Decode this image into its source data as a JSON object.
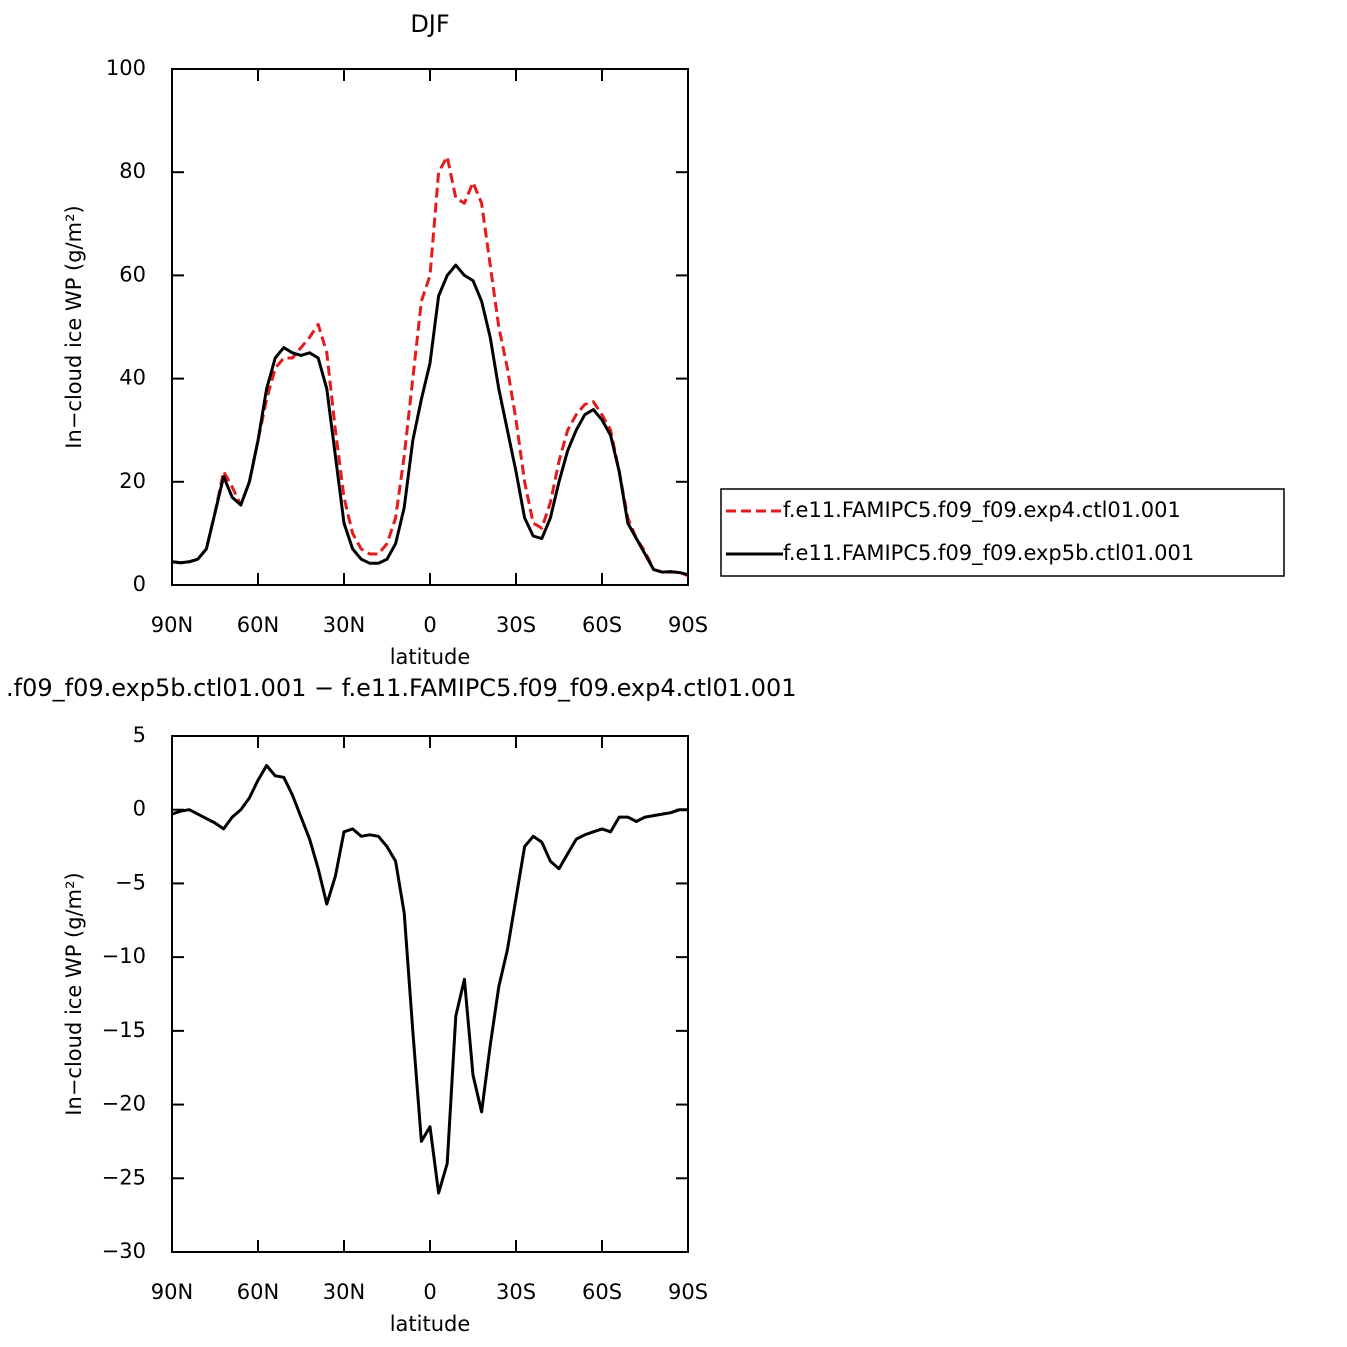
{
  "chart_data": [
    {
      "type": "line",
      "title": "DJF",
      "xlabel": "latitude",
      "ylabel": "In−cloud ice WP (g/m²)",
      "x": [
        90,
        87,
        84,
        81,
        78,
        75,
        72,
        69,
        66,
        63,
        60,
        57,
        54,
        51,
        48,
        45,
        42,
        39,
        36,
        33,
        30,
        27,
        24,
        21,
        18,
        15,
        12,
        9,
        6,
        3,
        0,
        -3,
        -6,
        -9,
        -12,
        -15,
        -18,
        -21,
        -24,
        -27,
        -30,
        -33,
        -36,
        -39,
        -42,
        -45,
        -48,
        -51,
        -54,
        -57,
        -60,
        -63,
        -66,
        -69,
        -72,
        -75,
        -78,
        -81,
        -84,
        -87,
        -90
      ],
      "xlim": [
        90,
        -90
      ],
      "xticks": [
        {
          "value": 90,
          "label": "90N"
        },
        {
          "value": 60,
          "label": "60N"
        },
        {
          "value": 30,
          "label": "30N"
        },
        0,
        {
          "value": -30,
          "label": "30S"
        },
        {
          "value": -60,
          "label": "60S"
        },
        {
          "value": -90,
          "label": "90S"
        }
      ],
      "ylim": [
        0,
        100
      ],
      "yticks": [
        0,
        20,
        40,
        60,
        80,
        100
      ],
      "legend": "outside right",
      "series": [
        {
          "name": "f.e11.FAMIPC5.f09_f09.exp4.ctl01.001",
          "color": "#e41a1c",
          "line_style": "dashed",
          "values": [
            4.5,
            4.3,
            4.5,
            5,
            7,
            14,
            22,
            19,
            15.5,
            20,
            28,
            36,
            42,
            44,
            44,
            46,
            48,
            50.5,
            45,
            30,
            17,
            10,
            7,
            6,
            6,
            8,
            13,
            25,
            40,
            55,
            60,
            80,
            83,
            75,
            74,
            78,
            74,
            62,
            50,
            42,
            32,
            20,
            12,
            11,
            16,
            24,
            30,
            33,
            35,
            35.5,
            33,
            30,
            22,
            13,
            9,
            6.5,
            3,
            2.5,
            2.5,
            2.5,
            1.8
          ]
        },
        {
          "name": "f.e11.FAMIPC5.f09_f09.exp5b.ctl01.001",
          "color": "#000000",
          "line_style": "solid",
          "values": [
            4.5,
            4.3,
            4.5,
            5,
            7,
            14,
            21,
            17,
            15.5,
            20,
            28,
            38,
            44,
            46,
            45,
            44.5,
            45,
            44,
            38,
            25,
            12,
            7,
            5,
            4.2,
            4.2,
            5,
            8,
            15,
            28,
            36,
            43,
            56,
            60,
            62,
            60,
            59,
            55,
            48,
            38,
            30,
            22,
            13,
            9.5,
            9,
            13,
            20,
            26,
            30,
            33,
            34,
            32,
            29,
            22,
            12,
            9,
            6,
            3,
            2.5,
            2.6,
            2.4,
            2
          ]
        }
      ]
    },
    {
      "type": "line",
      "title": ".f09_f09.exp5b.ctl01.001  −  f.e11.FAMIPC5.f09_f09.exp4.ctl01.001",
      "xlabel": "latitude",
      "ylabel": "In−cloud ice WP (g/m²)",
      "x": [
        90,
        87,
        84,
        81,
        78,
        75,
        72,
        69,
        66,
        63,
        60,
        57,
        54,
        51,
        48,
        45,
        42,
        39,
        36,
        33,
        30,
        27,
        24,
        21,
        18,
        15,
        12,
        9,
        6,
        3,
        0,
        -3,
        -6,
        -9,
        -12,
        -15,
        -18,
        -21,
        -24,
        -27,
        -30,
        -33,
        -36,
        -39,
        -42,
        -45,
        -48,
        -51,
        -54,
        -57,
        -60,
        -63,
        -66,
        -69,
        -72,
        -75,
        -78,
        -81,
        -84,
        -87,
        -90
      ],
      "xlim": [
        90,
        -90
      ],
      "xticks": [
        {
          "value": 90,
          "label": "90N"
        },
        {
          "value": 60,
          "label": "60N"
        },
        {
          "value": 30,
          "label": "30N"
        },
        0,
        {
          "value": -30,
          "label": "30S"
        },
        {
          "value": -60,
          "label": "60S"
        },
        {
          "value": -90,
          "label": "90S"
        }
      ],
      "ylim": [
        -30,
        5
      ],
      "yticks": [
        {
          "value": -30,
          "label": "−30"
        },
        {
          "value": -25,
          "label": "−25"
        },
        {
          "value": -20,
          "label": "−20"
        },
        {
          "value": -15,
          "label": "−15"
        },
        {
          "value": -10,
          "label": "−10"
        },
        {
          "value": -5,
          "label": "−5"
        },
        0,
        5
      ],
      "color": "#000000",
      "values": [
        -0.3,
        -0.1,
        0,
        -0.3,
        -0.6,
        -0.9,
        -1.3,
        -0.5,
        0,
        0.8,
        2,
        3,
        2.3,
        2.2,
        1,
        -0.5,
        -2,
        -4,
        -6.4,
        -4.5,
        -1.5,
        -1.3,
        -1.8,
        -1.7,
        -1.8,
        -2.5,
        -3.5,
        -7,
        -15,
        -22.5,
        -21.5,
        -26,
        -24,
        -14,
        -11.5,
        -18,
        -20.5,
        -16,
        -12,
        -9.5,
        -6,
        -2.5,
        -1.8,
        -2.2,
        -3.5,
        -4,
        -3,
        -2,
        -1.7,
        -1.5,
        -1.3,
        -1.5,
        -0.5,
        -0.5,
        -0.8,
        -0.5,
        -0.4,
        -0.3,
        -0.2,
        0,
        0
      ]
    }
  ]
}
